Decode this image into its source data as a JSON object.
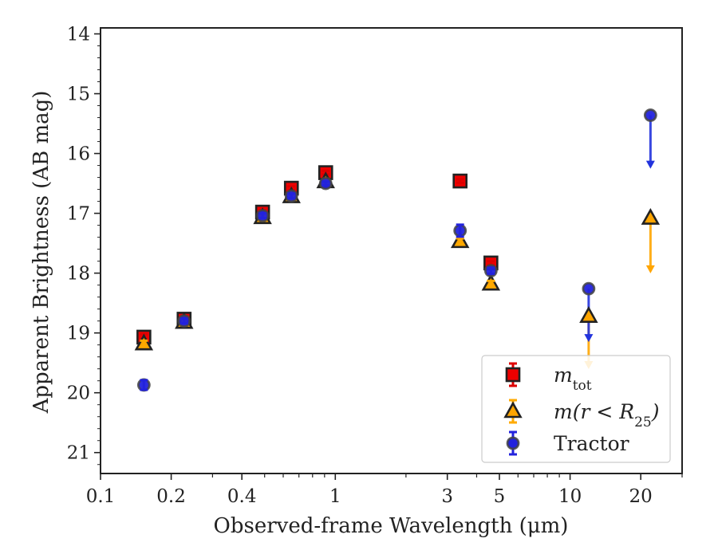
{
  "chart_data": {
    "type": "scatter",
    "xlabel": "Observed-frame Wavelength (μm)",
    "ylabel": "Apparent Brightness (AB mag)",
    "x_scale": "log",
    "xlim": [
      0.1,
      30
    ],
    "ylim": [
      21.35,
      13.9
    ],
    "y_inverted": true,
    "x_ticks": [
      {
        "value": 0.1,
        "label": "0.1"
      },
      {
        "value": 0.2,
        "label": "0.2"
      },
      {
        "value": 0.4,
        "label": "0.4"
      },
      {
        "value": 1,
        "label": "1"
      },
      {
        "value": 3,
        "label": "3"
      },
      {
        "value": 5,
        "label": "5"
      },
      {
        "value": 10,
        "label": "10"
      },
      {
        "value": 20,
        "label": "20"
      }
    ],
    "y_ticks": [
      {
        "value": 14,
        "label": "14"
      },
      {
        "value": 15,
        "label": "15"
      },
      {
        "value": 16,
        "label": "16"
      },
      {
        "value": 17,
        "label": "17"
      },
      {
        "value": 18,
        "label": "18"
      },
      {
        "value": 19,
        "label": "19"
      },
      {
        "value": 20,
        "label": "20"
      },
      {
        "value": 21,
        "label": "21"
      }
    ],
    "grid": false,
    "legend_position": "lower-right",
    "series": [
      {
        "name": "$m_{tot}$",
        "legend_main": "m",
        "legend_sub": "tot",
        "marker": "square",
        "fill": "#ee0000",
        "points": [
          {
            "x": 0.153,
            "y": 19.07,
            "err": 0.05
          },
          {
            "x": 0.227,
            "y": 18.77,
            "err": 0.05
          },
          {
            "x": 0.49,
            "y": 16.98,
            "err": 0.03
          },
          {
            "x": 0.65,
            "y": 16.58,
            "err": 0.03
          },
          {
            "x": 0.91,
            "y": 16.32,
            "err": 0.03
          },
          {
            "x": 3.4,
            "y": 16.46,
            "err": 0.03
          },
          {
            "x": 4.6,
            "y": 17.83,
            "err": 0.03
          }
        ]
      },
      {
        "name": "$m(r < R_{25})$",
        "legend_main": "m(r < R",
        "legend_sub": "25",
        "legend_close": ")",
        "marker": "triangle",
        "fill": "#ffa500",
        "points": [
          {
            "x": 0.153,
            "y": 19.18,
            "err": 0.05
          },
          {
            "x": 0.227,
            "y": 18.82,
            "err": 0.05
          },
          {
            "x": 0.49,
            "y": 17.07,
            "err": 0.03
          },
          {
            "x": 0.65,
            "y": 16.72,
            "err": 0.03
          },
          {
            "x": 0.91,
            "y": 16.47,
            "err": 0.03
          },
          {
            "x": 3.4,
            "y": 17.47,
            "err": 0.05
          },
          {
            "x": 4.6,
            "y": 18.18,
            "err": 0.05
          },
          {
            "x": 12.0,
            "y": 18.72,
            "err": 0,
            "upper_limit": true,
            "arrow_to": 19.55
          },
          {
            "x": 22.0,
            "y": 17.08,
            "err": 0,
            "upper_limit": true,
            "arrow_to": 17.95
          }
        ]
      },
      {
        "name": "Tractor",
        "legend_main": "Tractor",
        "marker": "circle",
        "fill": "#2222dd",
        "points": [
          {
            "x": 0.153,
            "y": 19.87,
            "err": 0.08
          },
          {
            "x": 0.227,
            "y": 18.8,
            "err": 0.04
          },
          {
            "x": 0.49,
            "y": 17.04,
            "err": 0.04
          },
          {
            "x": 0.65,
            "y": 16.71,
            "err": 0.04
          },
          {
            "x": 0.91,
            "y": 16.5,
            "err": 0.03
          },
          {
            "x": 3.4,
            "y": 17.29,
            "err": 0.1
          },
          {
            "x": 4.6,
            "y": 17.96,
            "err": 0.05
          },
          {
            "x": 12.0,
            "y": 18.26,
            "err": 0,
            "upper_limit": true,
            "arrow_to": 19.1
          },
          {
            "x": 22.0,
            "y": 15.36,
            "err": 0,
            "upper_limit": true,
            "arrow_to": 16.2
          }
        ]
      }
    ]
  }
}
